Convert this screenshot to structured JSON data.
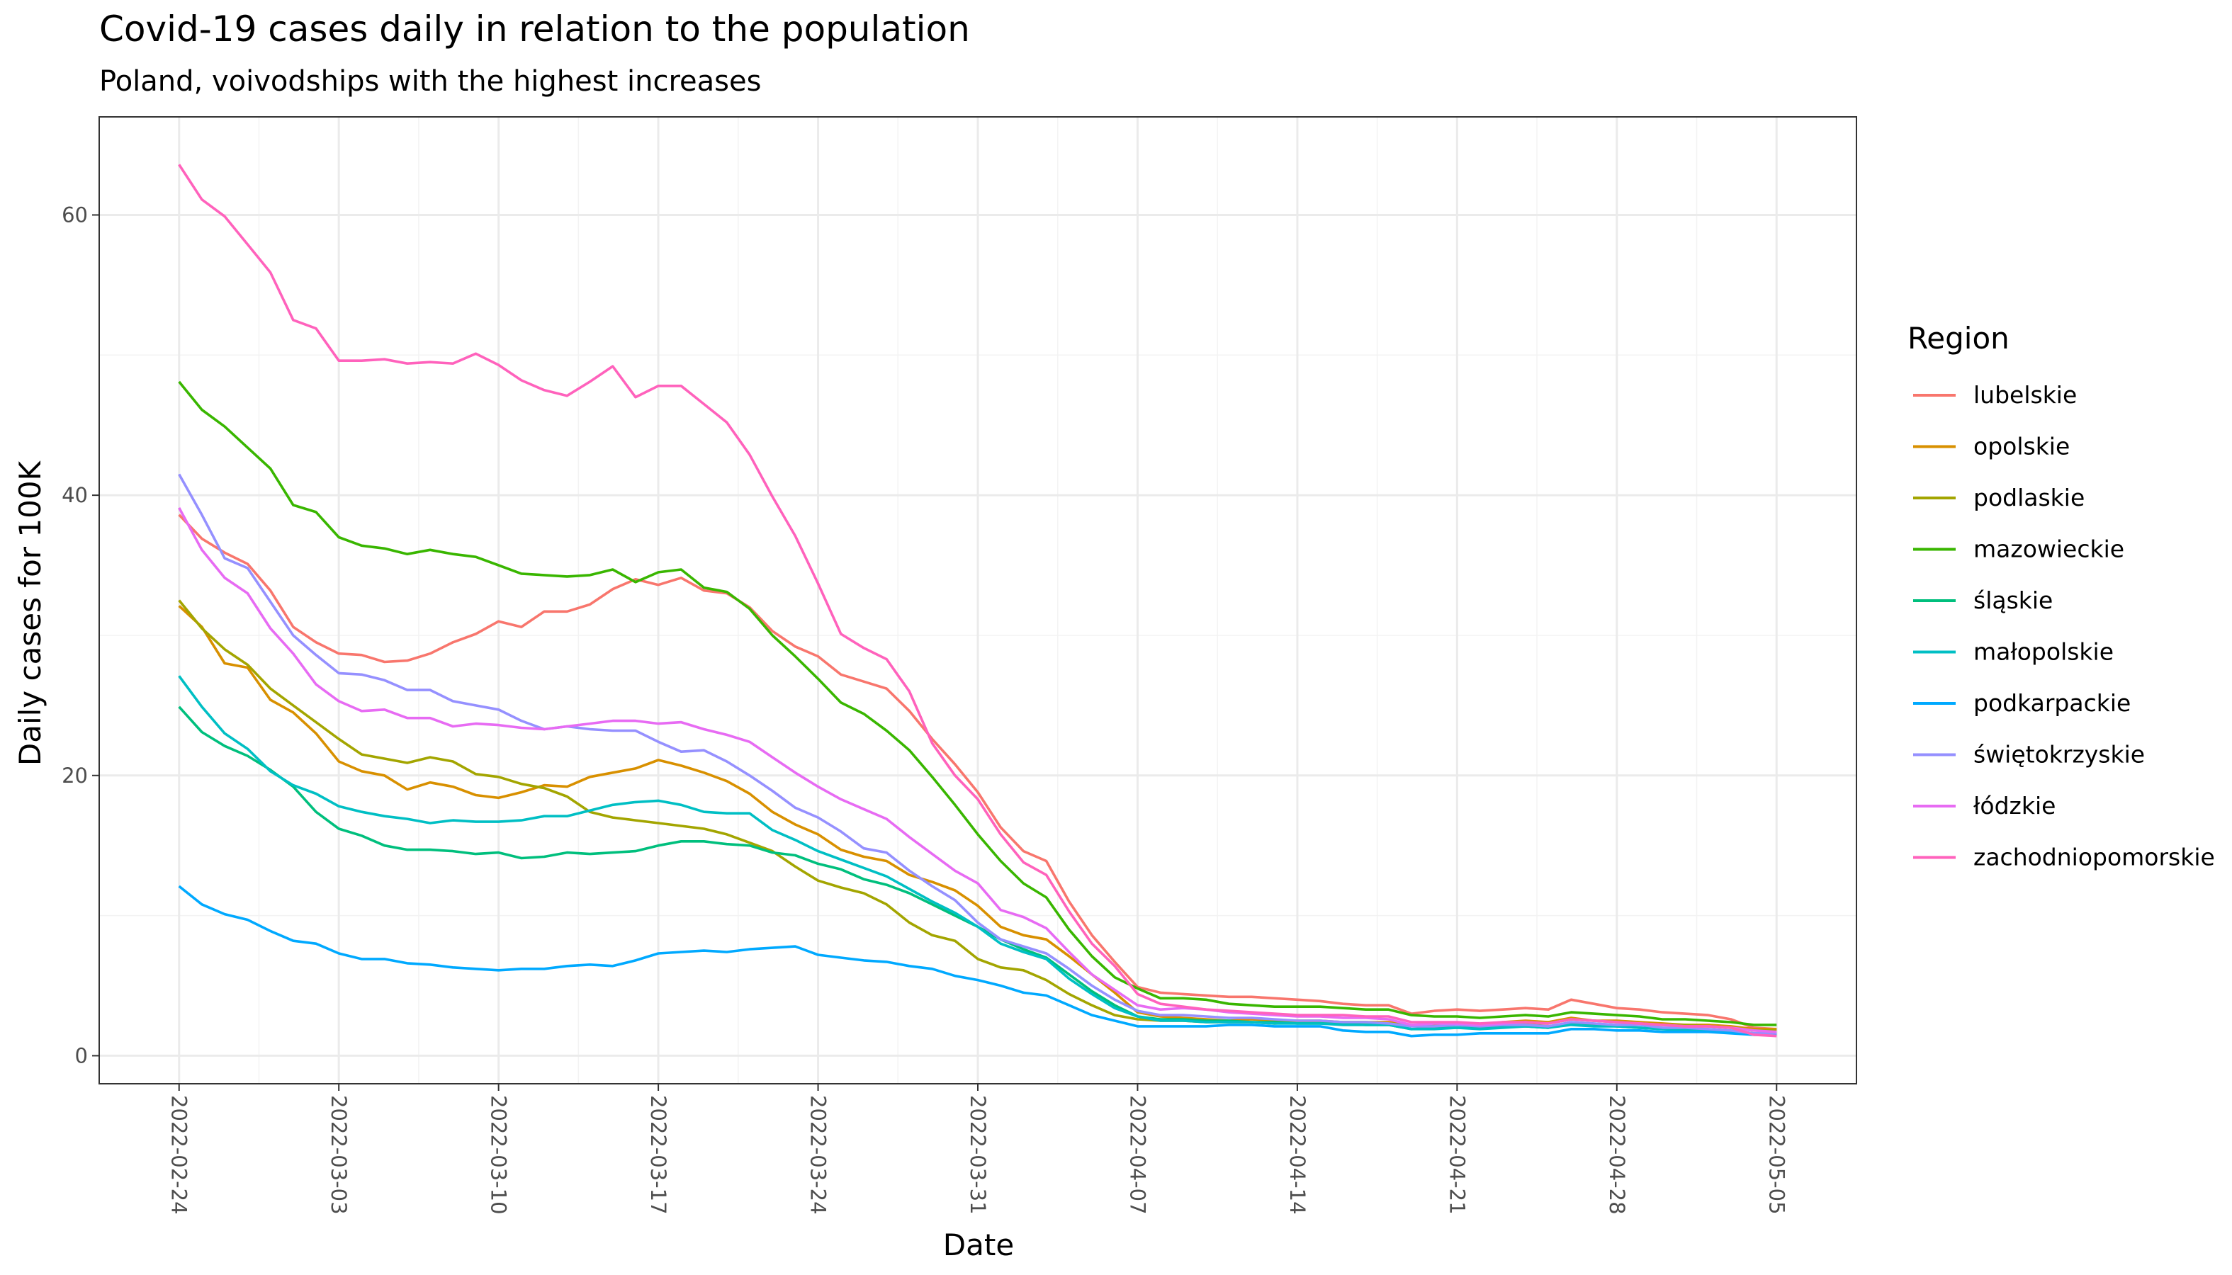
{
  "chart_data": {
    "type": "line",
    "title": "Covid-19 cases daily in relation to the population",
    "subtitle": "Poland, voivodships with the highest increases",
    "xlabel": "Date",
    "ylabel": "Daily cases for 100K",
    "x_start": "2022-02-24",
    "x_ticks": [
      "2022-02-24",
      "2022-03-03",
      "2022-03-10",
      "2022-03-17",
      "2022-03-24",
      "2022-03-31",
      "2022-04-07",
      "2022-04-14",
      "2022-04-21",
      "2022-04-28",
      "2022-05-05"
    ],
    "y_ticks": [
      "0",
      "20",
      "40",
      "60"
    ],
    "ylim": [
      -2,
      67
    ],
    "grid": true,
    "legend": {
      "title": "Region",
      "position": "right"
    },
    "series": [
      {
        "name": "lubelskie",
        "color": "#F8766D",
        "values": [
          38.6,
          36.9,
          35.9,
          35.1,
          33.2,
          30.6,
          29.5,
          28.7,
          28.6,
          28.1,
          28.2,
          28.7,
          29.5,
          30.1,
          31.0,
          30.6,
          31.7,
          31.7,
          32.2,
          33.3,
          34.0,
          33.6,
          34.1,
          33.2,
          33.0,
          32.0,
          30.3,
          29.2,
          28.5,
          27.2,
          26.7,
          26.2,
          24.6,
          22.6,
          20.8,
          18.8,
          16.3,
          14.6,
          13.9,
          11.0,
          8.6,
          6.7,
          4.9,
          4.5,
          4.4,
          4.3,
          4.2,
          4.2,
          4.1,
          4.0,
          3.9,
          3.7,
          3.6,
          3.6,
          3.0,
          3.2,
          3.3,
          3.2,
          3.3,
          3.4,
          3.3,
          4.0,
          3.7,
          3.4,
          3.3,
          3.1,
          3.0,
          2.9,
          2.6,
          2.0,
          1.9
        ]
      },
      {
        "name": "opolskie",
        "color": "#D89000",
        "values": [
          32.1,
          30.6,
          28.0,
          27.7,
          25.4,
          24.5,
          23.0,
          21.0,
          20.3,
          20.0,
          19.0,
          19.5,
          19.2,
          18.6,
          18.4,
          18.8,
          19.3,
          19.2,
          19.9,
          20.2,
          20.5,
          21.1,
          20.7,
          20.2,
          19.6,
          18.7,
          17.4,
          16.5,
          15.8,
          14.7,
          14.2,
          13.9,
          12.9,
          12.4,
          11.8,
          10.7,
          9.2,
          8.6,
          8.3,
          7.1,
          5.8,
          4.5,
          3.1,
          2.8,
          2.7,
          2.6,
          2.5,
          2.6,
          2.5,
          2.5,
          2.5,
          2.4,
          2.4,
          2.4,
          2.2,
          2.2,
          2.3,
          2.2,
          2.4,
          2.5,
          2.4,
          2.7,
          2.5,
          2.5,
          2.4,
          2.3,
          2.2,
          2.2,
          2.1,
          1.9,
          1.9
        ]
      },
      {
        "name": "podlaskie",
        "color": "#A3A500",
        "values": [
          32.5,
          30.5,
          29.0,
          27.9,
          26.2,
          25.0,
          23.8,
          22.6,
          21.5,
          21.2,
          20.9,
          21.3,
          21.0,
          20.1,
          19.9,
          19.4,
          19.1,
          18.5,
          17.4,
          17.0,
          16.8,
          16.6,
          16.4,
          16.2,
          15.8,
          15.2,
          14.6,
          13.5,
          12.5,
          12.0,
          11.6,
          10.8,
          9.5,
          8.6,
          8.2,
          6.9,
          6.3,
          6.1,
          5.4,
          4.4,
          3.6,
          2.9,
          2.6,
          2.5,
          2.5,
          2.4,
          2.4,
          2.4,
          2.3,
          2.4,
          2.4,
          2.4,
          2.4,
          2.3,
          2.2,
          2.2,
          2.3,
          2.2,
          2.3,
          2.3,
          2.3,
          2.6,
          2.5,
          2.4,
          2.3,
          2.2,
          2.2,
          2.1,
          2.0,
          1.8,
          1.8
        ]
      },
      {
        "name": "mazowieckie",
        "color": "#39B600",
        "values": [
          48.1,
          46.1,
          44.9,
          43.4,
          41.9,
          39.3,
          38.8,
          37.0,
          36.4,
          36.2,
          35.8,
          36.1,
          35.8,
          35.6,
          35.0,
          34.4,
          34.3,
          34.2,
          34.3,
          34.7,
          33.8,
          34.5,
          34.7,
          33.4,
          33.1,
          31.9,
          30.0,
          28.5,
          26.9,
          25.2,
          24.4,
          23.2,
          21.8,
          19.9,
          17.9,
          15.8,
          13.9,
          12.3,
          11.3,
          9.0,
          7.1,
          5.6,
          4.8,
          4.1,
          4.1,
          4.0,
          3.7,
          3.6,
          3.5,
          3.5,
          3.5,
          3.4,
          3.3,
          3.3,
          2.9,
          2.8,
          2.8,
          2.7,
          2.8,
          2.9,
          2.8,
          3.1,
          3.0,
          2.9,
          2.8,
          2.6,
          2.6,
          2.5,
          2.4,
          2.2,
          2.2
        ]
      },
      {
        "name": "śląskie",
        "color": "#00BF7D",
        "values": [
          24.9,
          23.1,
          22.1,
          21.4,
          20.4,
          19.2,
          17.4,
          16.2,
          15.7,
          15.0,
          14.7,
          14.7,
          14.6,
          14.4,
          14.5,
          14.1,
          14.2,
          14.5,
          14.4,
          14.5,
          14.6,
          15.0,
          15.3,
          15.3,
          15.1,
          15.0,
          14.5,
          14.3,
          13.7,
          13.3,
          12.6,
          12.2,
          11.6,
          10.8,
          10.0,
          9.2,
          8.3,
          7.6,
          7.0,
          5.8,
          4.6,
          3.6,
          2.8,
          2.6,
          2.6,
          2.5,
          2.5,
          2.4,
          2.4,
          2.3,
          2.3,
          2.3,
          2.2,
          2.2,
          1.9,
          2.0,
          2.0,
          2.0,
          2.1,
          2.1,
          2.0,
          2.3,
          2.2,
          2.1,
          2.0,
          1.9,
          1.9,
          1.8,
          1.7,
          1.6,
          1.6
        ]
      },
      {
        "name": "małopolskie",
        "color": "#00BFC4",
        "values": [
          27.1,
          24.9,
          23.0,
          21.9,
          20.3,
          19.3,
          18.7,
          17.8,
          17.4,
          17.1,
          16.9,
          16.6,
          16.8,
          16.7,
          16.7,
          16.8,
          17.1,
          17.1,
          17.5,
          17.9,
          18.1,
          18.2,
          17.9,
          17.4,
          17.3,
          17.3,
          16.1,
          15.4,
          14.6,
          14.0,
          13.4,
          12.8,
          11.9,
          11.0,
          10.2,
          9.2,
          8.0,
          7.4,
          6.9,
          5.5,
          4.4,
          3.4,
          2.8,
          2.5,
          2.5,
          2.4,
          2.4,
          2.4,
          2.3,
          2.3,
          2.3,
          2.2,
          2.2,
          2.2,
          1.9,
          1.9,
          2.0,
          1.9,
          2.0,
          2.1,
          2.0,
          2.2,
          2.1,
          2.1,
          2.0,
          1.9,
          1.8,
          1.8,
          1.7,
          1.5,
          1.5
        ]
      },
      {
        "name": "podkarpackie",
        "color": "#00A9FF",
        "values": [
          12.1,
          10.8,
          10.1,
          9.7,
          8.9,
          8.2,
          8.0,
          7.3,
          6.9,
          6.9,
          6.6,
          6.5,
          6.3,
          6.2,
          6.1,
          6.2,
          6.2,
          6.4,
          6.5,
          6.4,
          6.8,
          7.3,
          7.4,
          7.5,
          7.4,
          7.6,
          7.7,
          7.8,
          7.2,
          7.0,
          6.8,
          6.7,
          6.4,
          6.2,
          5.7,
          5.4,
          5.0,
          4.5,
          4.3,
          3.6,
          2.9,
          2.5,
          2.1,
          2.1,
          2.1,
          2.1,
          2.2,
          2.2,
          2.1,
          2.1,
          2.1,
          1.8,
          1.7,
          1.7,
          1.4,
          1.5,
          1.5,
          1.6,
          1.6,
          1.6,
          1.6,
          1.9,
          1.9,
          1.8,
          1.8,
          1.7,
          1.7,
          1.7,
          1.6,
          1.5,
          1.5
        ]
      },
      {
        "name": "świętokrzyskie",
        "color": "#9590FF",
        "values": [
          41.5,
          38.6,
          35.5,
          34.8,
          32.4,
          30.0,
          28.6,
          27.3,
          27.2,
          26.8,
          26.1,
          26.1,
          25.3,
          25.0,
          24.7,
          23.9,
          23.3,
          23.5,
          23.3,
          23.2,
          23.2,
          22.4,
          21.7,
          21.8,
          21.0,
          20.0,
          18.9,
          17.7,
          17.0,
          16.0,
          14.8,
          14.5,
          13.2,
          12.1,
          11.1,
          9.5,
          8.3,
          7.8,
          7.3,
          6.2,
          5.0,
          4.0,
          3.2,
          2.9,
          2.9,
          2.8,
          2.7,
          2.7,
          2.6,
          2.5,
          2.5,
          2.4,
          2.4,
          2.3,
          2.1,
          2.1,
          2.2,
          2.1,
          2.2,
          2.2,
          2.1,
          2.4,
          2.3,
          2.2,
          2.2,
          2.0,
          2.0,
          1.9,
          1.8,
          1.6,
          1.6
        ]
      },
      {
        "name": "łódzkie",
        "color": "#E76BF3",
        "values": [
          39.1,
          36.1,
          34.1,
          33.0,
          30.5,
          28.7,
          26.5,
          25.3,
          24.6,
          24.7,
          24.1,
          24.1,
          23.5,
          23.7,
          23.6,
          23.4,
          23.3,
          23.5,
          23.7,
          23.9,
          23.9,
          23.7,
          23.8,
          23.3,
          22.9,
          22.4,
          21.3,
          20.2,
          19.2,
          18.3,
          17.6,
          16.9,
          15.6,
          14.4,
          13.2,
          12.3,
          10.4,
          9.9,
          9.1,
          7.4,
          5.8,
          4.7,
          3.6,
          3.3,
          3.4,
          3.3,
          3.1,
          3.0,
          2.9,
          2.8,
          2.8,
          2.7,
          2.7,
          2.6,
          2.2,
          2.3,
          2.3,
          2.2,
          2.3,
          2.4,
          2.3,
          2.6,
          2.5,
          2.4,
          2.3,
          2.2,
          2.1,
          2.1,
          2.0,
          1.8,
          1.7
        ]
      },
      {
        "name": "zachodniopomorskie",
        "color": "#FF62BC",
        "values": [
          63.6,
          61.1,
          59.9,
          57.9,
          55.9,
          52.5,
          51.9,
          49.6,
          49.6,
          49.7,
          49.4,
          49.5,
          49.4,
          50.1,
          49.3,
          48.2,
          47.5,
          47.1,
          48.1,
          49.2,
          47.0,
          47.8,
          47.8,
          46.5,
          45.2,
          42.9,
          39.9,
          37.1,
          33.7,
          30.1,
          29.1,
          28.3,
          26.0,
          22.3,
          20.0,
          18.3,
          15.8,
          13.8,
          12.9,
          10.3,
          8.0,
          6.4,
          4.4,
          3.7,
          3.5,
          3.3,
          3.2,
          3.1,
          3.0,
          2.9,
          2.9,
          2.9,
          2.8,
          2.8,
          2.4,
          2.4,
          2.4,
          2.3,
          2.4,
          2.4,
          2.3,
          2.6,
          2.5,
          2.4,
          2.3,
          2.2,
          2.1,
          2.1,
          2.0,
          1.5,
          1.4
        ]
      }
    ]
  }
}
